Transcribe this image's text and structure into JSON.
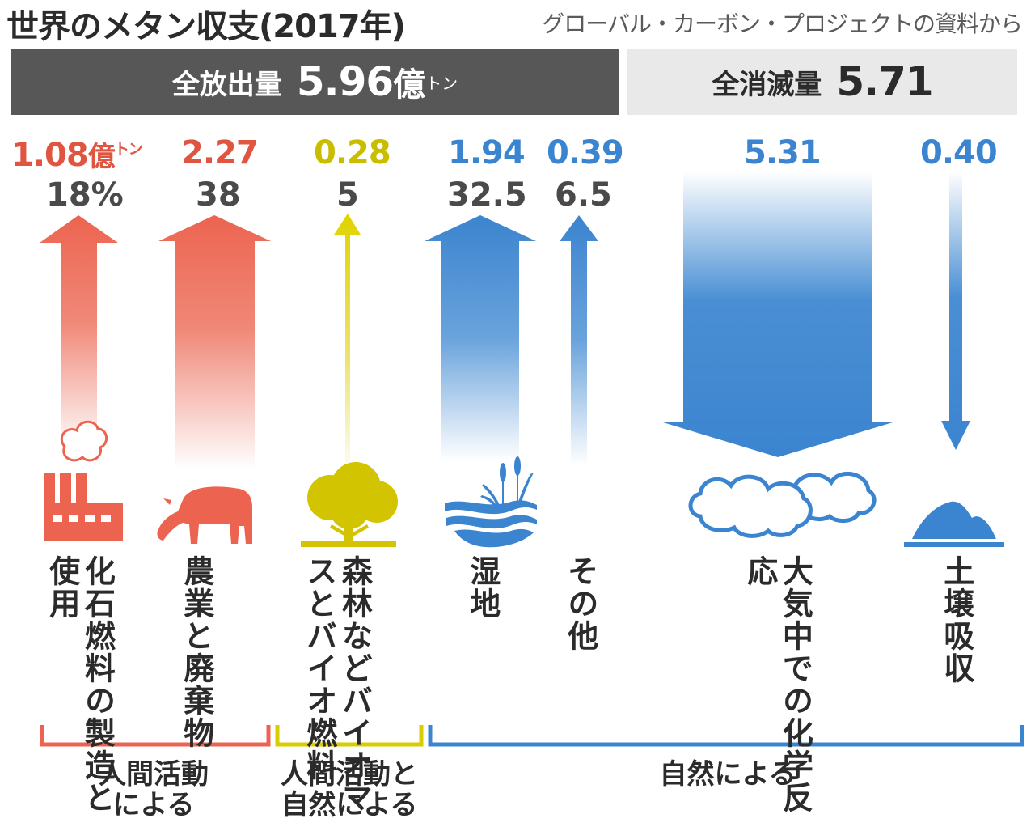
{
  "header": {
    "title": "世界のメタン収支(2017年)",
    "source": "グローバル・カーボン・プロジェクトの資料から"
  },
  "emission_total": {
    "label": "全放出量",
    "value": "5.96",
    "unit": "億",
    "unit_sup": "トン"
  },
  "sink_total": {
    "label": "全消滅量",
    "value": "5.71"
  },
  "colors": {
    "anthropogenic": "#ec6450",
    "mixed": "#d9cc00",
    "natural": "#3b84cf",
    "emission_bar": "#575757",
    "sink_bar": "#e9e9e9"
  },
  "sources": [
    {
      "value": "1.08",
      "unit": "億",
      "unit_sup": "トン",
      "percent": "18%",
      "label": "化石燃料の製造と使用",
      "icon": "factory-icon"
    },
    {
      "value": "2.27",
      "percent": "38",
      "label": "農業と廃棄物",
      "icon": "cow-icon"
    },
    {
      "value": "0.28",
      "percent": "5",
      "label": "森林などバイオマスとバイオ燃料",
      "icon": "tree-icon"
    },
    {
      "value": "1.94",
      "percent": "32.5",
      "label": "湿地",
      "icon": "wetland-icon"
    },
    {
      "value": "0.39",
      "percent": "6.5",
      "label": "その他",
      "icon": ""
    }
  ],
  "sinks": [
    {
      "value": "5.31",
      "label": "大気中での化学反応",
      "icon": "cloud-icon"
    },
    {
      "value": "0.40",
      "label": "土壌吸収",
      "icon": "soil-icon"
    }
  ],
  "groups": [
    {
      "label_line1": "人間活動",
      "label_line2": "による"
    },
    {
      "label_line1": "人間活動と",
      "label_line2": "自然による"
    },
    {
      "label_line1": "自然による",
      "label_line2": ""
    }
  ]
}
